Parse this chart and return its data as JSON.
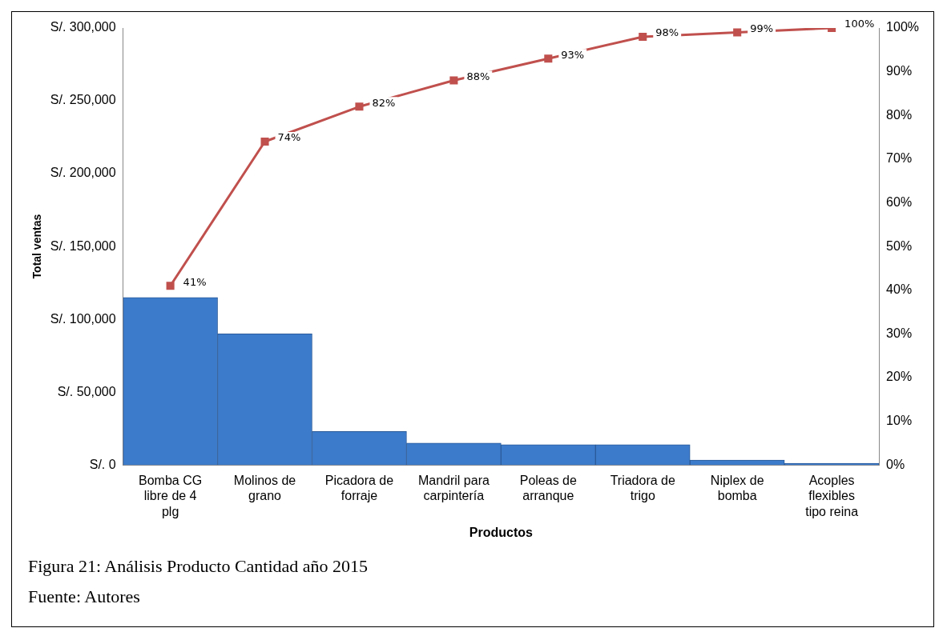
{
  "chart_data": {
    "type": "bar",
    "xlabel": "Productos",
    "ylabel": "Total ventas",
    "categories": [
      "Bomba CG libre de 4 plg",
      "Molinos de grano",
      "Picadora de forraje",
      "Mandril para carpintería",
      "Poleas de arranque",
      "Triadora de trigo",
      "Niplex de bomba",
      "Acoples flexibles tipo reina"
    ],
    "series": [
      {
        "color": "#3c7bcb",
        "values": [
          115000,
          90000,
          23000,
          15000,
          14000,
          14000,
          3300,
          1100
        ]
      },
      {
        "type": "line",
        "axis": "y2",
        "color": "#c0504d",
        "values": [
          41,
          74,
          82,
          88,
          93,
          98,
          99,
          100
        ],
        "value_labels": [
          "41%",
          "74%",
          "82%",
          "88%",
          "93%",
          "98%",
          "99%",
          "100%"
        ]
      }
    ],
    "ylim": [
      0,
      300000
    ],
    "yticks": [
      {
        "value": 0,
        "label": "S/. 0"
      },
      {
        "value": 50000,
        "label": "S/. 50,000"
      },
      {
        "value": 100000,
        "label": "S/. 100,000"
      },
      {
        "value": 150000,
        "label": "S/. 150,000"
      },
      {
        "value": 200000,
        "label": "S/. 200,000"
      },
      {
        "value": 250000,
        "label": "S/. 250,000"
      },
      {
        "value": 300000,
        "label": "S/. 300,000"
      }
    ],
    "y2lim": [
      0,
      100
    ],
    "y2ticks": [
      {
        "value": 0,
        "label": "0%"
      },
      {
        "value": 10,
        "label": "10%"
      },
      {
        "value": 20,
        "label": "20%"
      },
      {
        "value": 30,
        "label": "30%"
      },
      {
        "value": 40,
        "label": "40%"
      },
      {
        "value": 50,
        "label": "50%"
      },
      {
        "value": 60,
        "label": "60%"
      },
      {
        "value": 70,
        "label": "70%"
      },
      {
        "value": 80,
        "label": "80%"
      },
      {
        "value": 90,
        "label": "90%"
      },
      {
        "value": 100,
        "label": "100%"
      }
    ],
    "marker": "square",
    "grid": false,
    "legend": false,
    "annotations": [
      "Figura 21: Análisis Producto Cantidad año 2015",
      "Fuente: Autores"
    ]
  }
}
